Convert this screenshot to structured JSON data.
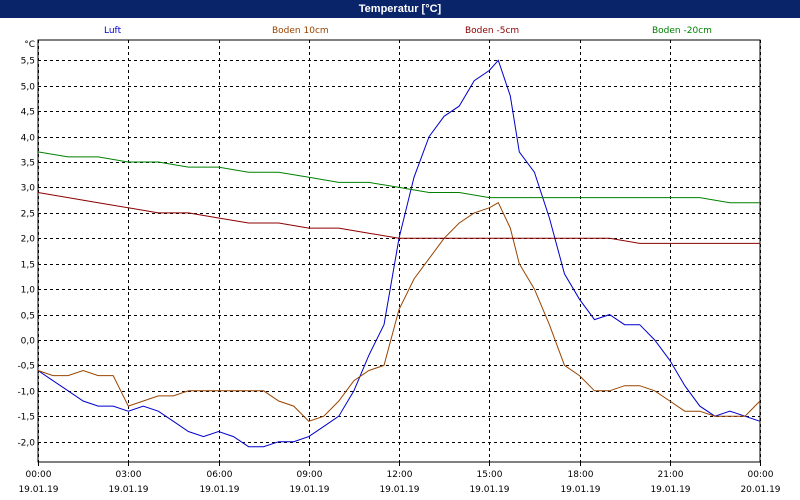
{
  "window": {
    "title": "Temperatur [°C]"
  },
  "chart_data": {
    "type": "line",
    "title": "Temperatur [°C]",
    "ylabel": "°C",
    "ylim": [
      -2.4,
      5.9
    ],
    "y_ticks": [
      "5,5",
      "5,0",
      "4,5",
      "4,0",
      "3,5",
      "3,0",
      "2,5",
      "2,0",
      "1,5",
      "1,0",
      "0,5",
      "0,0",
      "-0,5",
      "-1,0",
      "-1,5",
      "-2,0"
    ],
    "y_tick_values": [
      5.5,
      5.0,
      4.5,
      4.0,
      3.5,
      3.0,
      2.5,
      2.0,
      1.5,
      1.0,
      0.5,
      0.0,
      -0.5,
      -1.0,
      -1.5,
      -2.0
    ],
    "x_range_hours": [
      0,
      24
    ],
    "x_ticks": [
      {
        "time": "00:00",
        "date": "19.01.19",
        "h": 0
      },
      {
        "time": "03:00",
        "date": "19.01.19",
        "h": 3
      },
      {
        "time": "06:00",
        "date": "19.01.19",
        "h": 6
      },
      {
        "time": "09:00",
        "date": "19.01.19",
        "h": 9
      },
      {
        "time": "12:00",
        "date": "19.01.19",
        "h": 12
      },
      {
        "time": "15:00",
        "date": "19.01.19",
        "h": 15
      },
      {
        "time": "18:00",
        "date": "19.01.19",
        "h": 18
      },
      {
        "time": "21:00",
        "date": "19.01.19",
        "h": 21
      },
      {
        "time": "00:00",
        "date": "20.01.19",
        "h": 24
      }
    ],
    "grid": true,
    "legend_position": "top",
    "series": [
      {
        "name": "Luft",
        "color": "#0000cc",
        "x": [
          0,
          0.5,
          1,
          1.5,
          2,
          2.5,
          3,
          3.5,
          4,
          4.5,
          5,
          5.5,
          6,
          6.5,
          7,
          7.5,
          8,
          8.5,
          9,
          9.5,
          10,
          10.5,
          11,
          11.5,
          12,
          12.5,
          13,
          13.5,
          14,
          14.5,
          15,
          15.3,
          15.7,
          16,
          16.5,
          17,
          17.5,
          18,
          18.5,
          19,
          19.5,
          20,
          20.5,
          21,
          21.5,
          22,
          22.5,
          23,
          23.5,
          24
        ],
        "y": [
          -0.6,
          -0.8,
          -1.0,
          -1.2,
          -1.3,
          -1.3,
          -1.4,
          -1.3,
          -1.4,
          -1.6,
          -1.8,
          -1.9,
          -1.8,
          -1.9,
          -2.1,
          -2.1,
          -2.0,
          -2.0,
          -1.9,
          -1.7,
          -1.5,
          -1.0,
          -0.3,
          0.3,
          2.0,
          3.2,
          4.0,
          4.4,
          4.6,
          5.1,
          5.3,
          5.5,
          4.8,
          3.7,
          3.3,
          2.4,
          1.3,
          0.8,
          0.4,
          0.5,
          0.3,
          0.3,
          0.0,
          -0.4,
          -0.9,
          -1.3,
          -1.5,
          -1.4,
          -1.5,
          -1.6
        ]
      },
      {
        "name": "Boden 10cm",
        "color": "#994400",
        "x": [
          0,
          0.5,
          1,
          1.5,
          2,
          2.5,
          3,
          3.5,
          4,
          4.5,
          5,
          5.5,
          6,
          6.5,
          7,
          7.5,
          8,
          8.5,
          9,
          9.5,
          10,
          10.5,
          11,
          11.5,
          12,
          12.5,
          13,
          13.5,
          14,
          14.5,
          15,
          15.3,
          15.7,
          16,
          16.5,
          17,
          17.5,
          18,
          18.5,
          19,
          19.5,
          20,
          20.5,
          21,
          21.5,
          22,
          22.5,
          23,
          23.5,
          24
        ],
        "y": [
          -0.6,
          -0.7,
          -0.7,
          -0.6,
          -0.7,
          -0.7,
          -1.3,
          -1.2,
          -1.1,
          -1.1,
          -1.0,
          -1.0,
          -1.0,
          -1.0,
          -1.0,
          -1.0,
          -1.2,
          -1.3,
          -1.6,
          -1.5,
          -1.2,
          -0.8,
          -0.6,
          -0.5,
          0.6,
          1.2,
          1.6,
          2.0,
          2.3,
          2.5,
          2.6,
          2.7,
          2.2,
          1.5,
          1.0,
          0.3,
          -0.5,
          -0.7,
          -1.0,
          -1.0,
          -0.9,
          -0.9,
          -1.0,
          -1.2,
          -1.4,
          -1.4,
          -1.5,
          -1.5,
          -1.5,
          -1.2
        ]
      },
      {
        "name": "Boden -5cm",
        "color": "#8b0000",
        "x": [
          0,
          1,
          2,
          3,
          4,
          5,
          6,
          7,
          8,
          9,
          10,
          11,
          12,
          13,
          14,
          15,
          16,
          17,
          18,
          19,
          20,
          21,
          22,
          23,
          24
        ],
        "y": [
          2.9,
          2.8,
          2.7,
          2.6,
          2.5,
          2.5,
          2.4,
          2.3,
          2.3,
          2.2,
          2.2,
          2.1,
          2.0,
          2.0,
          2.0,
          2.0,
          2.0,
          2.0,
          2.0,
          2.0,
          1.9,
          1.9,
          1.9,
          1.9,
          1.9
        ]
      },
      {
        "name": "Boden -20cm",
        "color": "#008000",
        "x": [
          0,
          1,
          2,
          3,
          4,
          5,
          6,
          7,
          8,
          9,
          10,
          11,
          12,
          13,
          14,
          15,
          16,
          17,
          18,
          19,
          20,
          21,
          22,
          23,
          24
        ],
        "y": [
          3.7,
          3.6,
          3.6,
          3.5,
          3.5,
          3.4,
          3.4,
          3.3,
          3.3,
          3.2,
          3.1,
          3.1,
          3.0,
          2.9,
          2.9,
          2.8,
          2.8,
          2.8,
          2.8,
          2.8,
          2.8,
          2.8,
          2.8,
          2.7,
          2.7
        ]
      }
    ]
  }
}
